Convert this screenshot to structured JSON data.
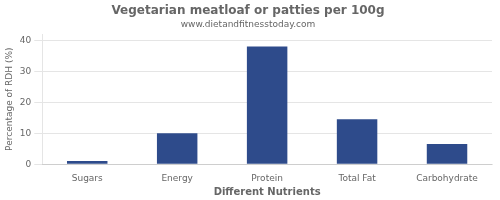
{
  "chart_data": {
    "type": "bar",
    "title": "Vegetarian meatloaf or patties per 100g",
    "subtitle": "www.dietandfitnesstoday.com",
    "xlabel": "Different Nutrients",
    "ylabel": "Percentage of RDH (%)",
    "categories": [
      "Sugars",
      "Energy",
      "Protein",
      "Total Fat",
      "Carbohydrate"
    ],
    "values": [
      1,
      10,
      38,
      14.5,
      6.5
    ],
    "color": "#2e4b8b",
    "ylim": [
      0,
      42
    ],
    "yticks": [
      0,
      10,
      20,
      30,
      40
    ],
    "grid": true
  }
}
